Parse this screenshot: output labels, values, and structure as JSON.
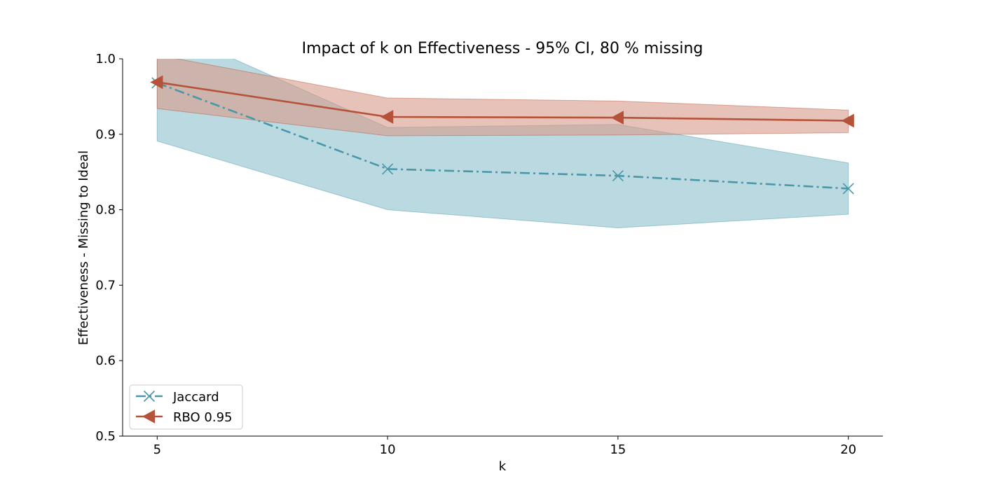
{
  "chart_data": {
    "type": "line",
    "title": "Impact of k on Effectiveness - 95% CI, 80 % missing",
    "xlabel": "k",
    "ylabel": "Effectiveness - Missing to Ideal",
    "x": [
      5,
      10,
      15,
      20
    ],
    "xlim": [
      4.25,
      20.75
    ],
    "ylim": [
      0.5,
      1.0
    ],
    "xticks": [
      "5",
      "10",
      "15",
      "20"
    ],
    "yticks": [
      "0.5",
      "0.6",
      "0.7",
      "0.8",
      "0.9",
      "1.0"
    ],
    "grid": false,
    "legend_position": "bottom-left",
    "series": [
      {
        "name": "Jaccard",
        "color": "#4a97a8",
        "fill_color": "#8ec0cd",
        "marker": "x",
        "line_style": "dash-dot",
        "values": [
          0.968,
          0.854,
          0.845,
          0.828
        ],
        "ci_lower": [
          0.891,
          0.8,
          0.776,
          0.794
        ],
        "ci_upper": [
          1.045,
          0.909,
          0.913,
          0.862
        ]
      },
      {
        "name": "RBO 0.95",
        "color": "#b5523a",
        "fill_color": "#d79a88",
        "marker": "triangle-left",
        "line_style": "solid",
        "values": [
          0.969,
          0.923,
          0.922,
          0.918
        ],
        "ci_lower": [
          0.934,
          0.898,
          0.899,
          0.902
        ],
        "ci_upper": [
          1.005,
          0.948,
          0.944,
          0.932
        ]
      }
    ]
  }
}
